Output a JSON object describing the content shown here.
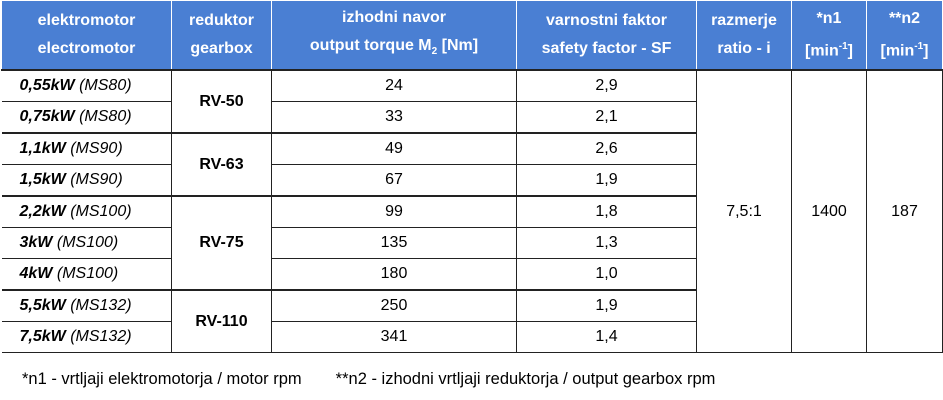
{
  "header": [
    {
      "line1": "elektromotor",
      "line2": "electromotor"
    },
    {
      "line1": "reduktor",
      "line2": "gearbox"
    },
    {
      "line1": "izhodni navor",
      "line2": "output torque M",
      "line2_sub": "2",
      "line2_after": " [Nm]"
    },
    {
      "line1": "varnostni faktor",
      "line2": "safety factor - SF"
    },
    {
      "line1": "razmerje",
      "line2": "ratio  - i"
    },
    {
      "line1": "*n1",
      "line2": "[min",
      "line2_sup": "-1",
      "line2_after": "]"
    },
    {
      "line1": "**n2",
      "line2": "[min",
      "line2_sup": "-1",
      "line2_after": "]"
    }
  ],
  "gearboxes": [
    {
      "name": "RV-50",
      "motors": [
        {
          "power": "0,55kW",
          "model": "(MS80)",
          "torque": "24",
          "sf": "2,9"
        },
        {
          "power": "0,75kW",
          "model": "(MS80)",
          "torque": "33",
          "sf": "2,1"
        }
      ]
    },
    {
      "name": "RV-63",
      "motors": [
        {
          "power": "1,1kW",
          "model": "(MS90)",
          "torque": "49",
          "sf": "2,6"
        },
        {
          "power": "1,5kW",
          "model": "(MS90)",
          "torque": "67",
          "sf": "1,9"
        }
      ]
    },
    {
      "name": "RV-75",
      "motors": [
        {
          "power": "2,2kW",
          "model": "(MS100)",
          "torque": "99",
          "sf": "1,8"
        },
        {
          "power": "3kW",
          "model": "(MS100)",
          "torque": "135",
          "sf": "1,3"
        },
        {
          "power": "4kW",
          "model": "(MS100)",
          "torque": "180",
          "sf": "1,0"
        }
      ]
    },
    {
      "name": "RV-110",
      "motors": [
        {
          "power": "5,5kW",
          "model": "(MS132)",
          "torque": "250",
          "sf": "1,9"
        },
        {
          "power": "7,5kW",
          "model": "(MS132)",
          "torque": "341",
          "sf": "1,4"
        }
      ]
    }
  ],
  "merged": {
    "ratio": "7,5:1",
    "n1": "1400",
    "n2": "187"
  },
  "footnotes": [
    "*n1 - vrtljaji elektromotorja / motor rpm",
    "**n2 - izhodni vrtljaji reduktorja / output gearbox rpm"
  ]
}
